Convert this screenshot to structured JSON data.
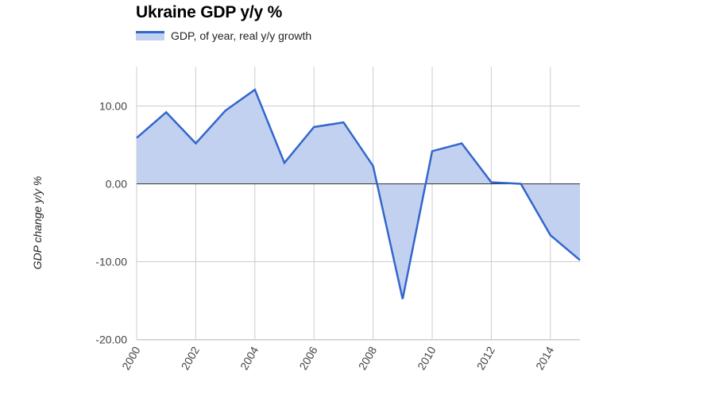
{
  "chart_data": {
    "type": "area",
    "title": "Ukraine GDP y/y %",
    "legend": [
      "GDP, of year, real y/y growth"
    ],
    "legend_position": "top",
    "xlabel": "",
    "ylabel": "GDP change y/y %",
    "ylim": [
      -20,
      15
    ],
    "yticks": [
      "10.00",
      "0.00",
      "-10.00",
      "-20.00"
    ],
    "xticks": [
      "2000",
      "2002",
      "2004",
      "2006",
      "2008",
      "2010",
      "2012",
      "2014"
    ],
    "grid": true,
    "x": [
      2000,
      2001,
      2002,
      2003,
      2004,
      2005,
      2006,
      2007,
      2008,
      2009,
      2010,
      2011,
      2012,
      2013,
      2014,
      2015
    ],
    "series": [
      {
        "name": "GDP, of year, real y/y growth",
        "values": [
          5.9,
          9.2,
          5.2,
          9.4,
          12.1,
          2.7,
          7.3,
          7.9,
          2.3,
          -14.8,
          4.2,
          5.2,
          0.2,
          0.0,
          -6.6,
          -9.8
        ],
        "line_color": "#3366cc",
        "fill_color": "#c2d1f0"
      }
    ]
  },
  "title": "Ukraine GDP y/y %",
  "legend_label": "GDP, of year, real y/y growth"
}
